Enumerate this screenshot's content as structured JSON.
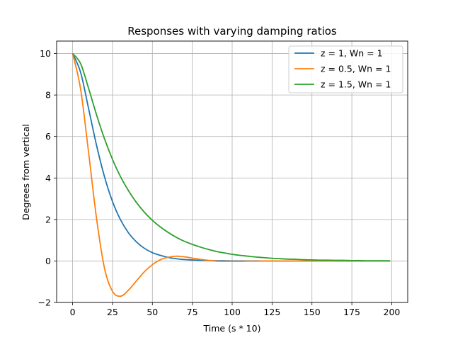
{
  "chart_data": {
    "type": "line",
    "title": "Responses with varying damping ratios",
    "xlabel": "Time (s * 10)",
    "ylabel": "Degrees from vertical",
    "xlim": [
      -10,
      210
    ],
    "ylim": [
      -2,
      10.6
    ],
    "xticks": [
      0,
      25,
      50,
      75,
      100,
      125,
      150,
      175,
      200
    ],
    "yticks": [
      -2,
      0,
      2,
      4,
      6,
      8,
      10
    ],
    "grid": true,
    "legend_position": "top-right",
    "x": [
      0,
      5,
      10,
      15,
      20,
      25,
      30,
      35,
      40,
      45,
      50,
      55,
      60,
      65,
      70,
      75,
      80,
      85,
      90,
      95,
      100,
      105,
      110,
      115,
      120,
      125,
      130,
      135,
      140,
      145,
      150,
      155,
      160,
      165,
      170,
      175,
      180,
      185,
      190,
      195,
      199
    ],
    "series": [
      {
        "name": "z = 1, Wn = 1",
        "color": "#1f77b4",
        "values": [
          10,
          9.1,
          7.36,
          5.58,
          4.06,
          2.87,
          1.99,
          1.36,
          0.92,
          0.61,
          0.4,
          0.27,
          0.17,
          0.11,
          0.07,
          0.05,
          0.03,
          0.02,
          0.01,
          0.01,
          0,
          0,
          0,
          0,
          0,
          0,
          0,
          0,
          0,
          0,
          0,
          0,
          0,
          0,
          0,
          0,
          0,
          0,
          0,
          0,
          0
        ]
      },
      {
        "name": "z = 0.5, Wn = 1",
        "color": "#ff7f0e",
        "values": [
          10,
          8.3,
          5.25,
          2.06,
          -0.35,
          -1.46,
          -1.7,
          -1.41,
          -0.96,
          -0.52,
          -0.18,
          0.06,
          0.18,
          0.23,
          0.2,
          0.14,
          0.08,
          0.03,
          -0.01,
          -0.02,
          -0.02,
          -0.02,
          -0.01,
          -0.01,
          0,
          0,
          0,
          0,
          0,
          0,
          0,
          0,
          0,
          0,
          0,
          0,
          0,
          0,
          0,
          0,
          0
        ]
      },
      {
        "name": "z = 1.5, Wn = 1",
        "color": "#2ca02c",
        "values": [
          10,
          9.52,
          8.33,
          7.05,
          5.89,
          4.9,
          4.07,
          3.39,
          2.82,
          2.35,
          1.96,
          1.64,
          1.37,
          1.14,
          0.95,
          0.8,
          0.67,
          0.56,
          0.46,
          0.39,
          0.32,
          0.27,
          0.23,
          0.19,
          0.16,
          0.13,
          0.11,
          0.09,
          0.08,
          0.06,
          0.05,
          0.04,
          0.04,
          0.03,
          0.03,
          0.02,
          0.02,
          0.01,
          0.01,
          0.01,
          0.01
        ]
      }
    ]
  }
}
